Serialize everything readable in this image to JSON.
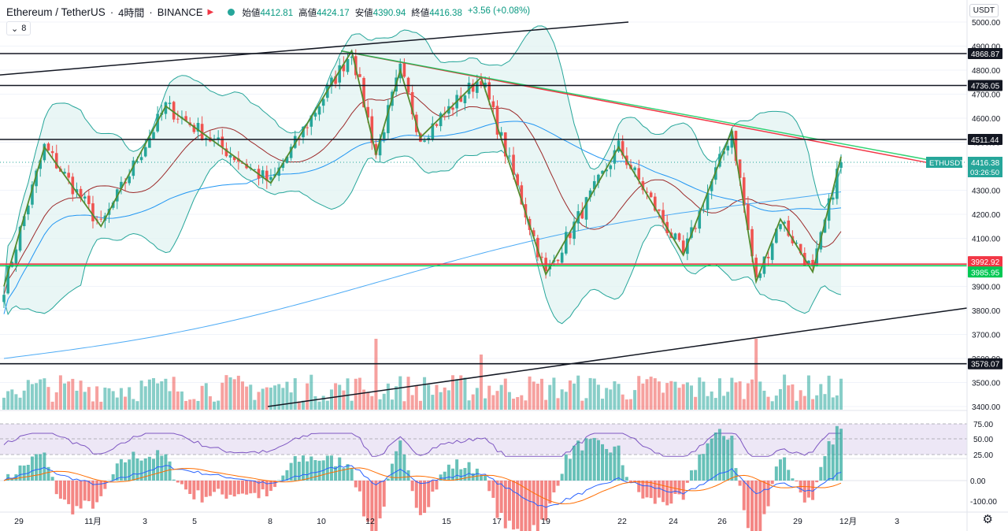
{
  "header": {
    "symbol": "Ethereum / TetherUS",
    "interval": "4時間",
    "exchange": "BINANCE",
    "open_label": "始値",
    "open": "4412.81",
    "high_label": "高値",
    "high": "4424.17",
    "low_label": "安値",
    "low": "4390.94",
    "close_label": "終値",
    "close": "4416.38",
    "change": "+3.56 (+0.08%)",
    "indicator_count": "8",
    "currency": "USDT"
  },
  "colors": {
    "up": "#26a69a",
    "down": "#ef5350",
    "accent_red": "#f23645",
    "accent_green": "#00c853",
    "bb_fill": "#e0f2f1",
    "bb_line": "#26a69a",
    "ma_blue": "#2196f3",
    "ma_red": "#9c2a2a",
    "rsi_fill": "#ede7f6",
    "rsi_line": "#7e57c2",
    "macd_line": "#2962ff",
    "signal_line": "#ff6d00"
  },
  "chart_data": {
    "type": "candlestick",
    "y_axis_ticks": [
      "5000.00",
      "4900.00",
      "4800.00",
      "4700.00",
      "4600.00",
      "4500.00",
      "4400.00",
      "4300.00",
      "4200.00",
      "4100.00",
      "4000.00",
      "3900.00",
      "3800.00",
      "3700.00",
      "3600.00",
      "3500.00",
      "3400.00"
    ],
    "ylim": [
      3400,
      5000
    ],
    "x_axis_ticks": [
      "29",
      "11月",
      "3",
      "5",
      "8",
      "10",
      "12",
      "15",
      "17",
      "19",
      "22",
      "24",
      "26",
      "29",
      "12月",
      "3"
    ],
    "price_labels": [
      {
        "value": "4868.87",
        "kind": "line"
      },
      {
        "value": "4736.05",
        "kind": "line"
      },
      {
        "value": "4511.44",
        "kind": "line"
      },
      {
        "value": "3992.92",
        "kind": "support-red"
      },
      {
        "value": "3985.95",
        "kind": "support-green"
      },
      {
        "value": "3578.07",
        "kind": "line"
      }
    ],
    "current_price": {
      "symbol": "ETHUSDT",
      "value": "4416.38",
      "countdown": "03:26:50"
    },
    "rsi": {
      "ticks": [
        "75.00",
        "50.00",
        "25.00"
      ]
    },
    "macd": {
      "ticks": [
        "0.00",
        "-100.00"
      ]
    },
    "key_points": [
      {
        "x": "29",
        "y": 3900
      },
      {
        "x": "30",
        "y": 4480
      },
      {
        "x": "11月",
        "y": 4150
      },
      {
        "x": "2",
        "y": 4650
      },
      {
        "x": "6",
        "y": 4330
      },
      {
        "x": "10",
        "y": 4880
      },
      {
        "x": "11",
        "y": 4450
      },
      {
        "x": "12",
        "y": 4800
      },
      {
        "x": "13",
        "y": 4520
      },
      {
        "x": "15",
        "y": 4770
      },
      {
        "x": "18",
        "y": 3950
      },
      {
        "x": "21",
        "y": 4480
      },
      {
        "x": "23",
        "y": 4030
      },
      {
        "x": "25",
        "y": 4550
      },
      {
        "x": "26",
        "y": 3920
      },
      {
        "x": "28",
        "y": 4180
      },
      {
        "x": "29",
        "y": 3960
      },
      {
        "x": "30",
        "y": 4440
      }
    ]
  }
}
